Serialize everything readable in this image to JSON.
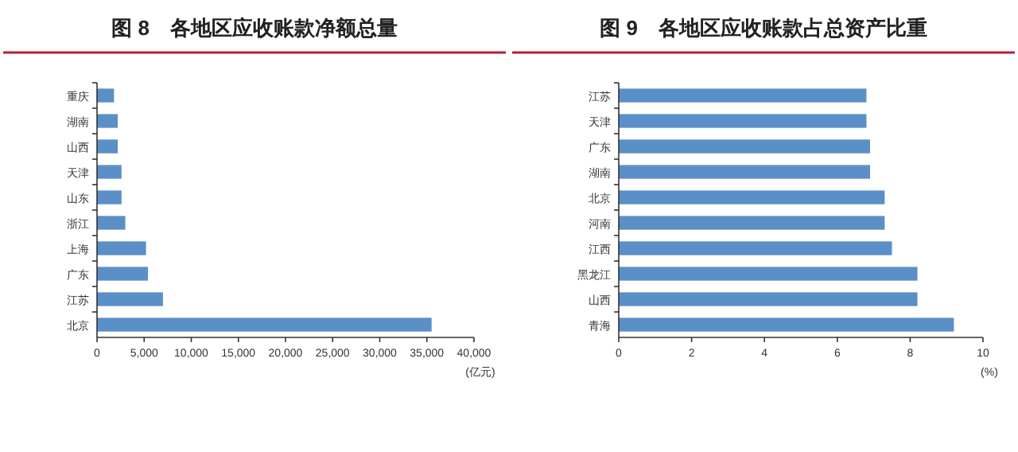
{
  "chart_data": [
    {
      "type": "bar",
      "orientation": "horizontal",
      "title": "图 8　各地区应收账款净额总量",
      "xlabel": "(亿元)",
      "categories": [
        "重庆",
        "湖南",
        "山西",
        "天津",
        "山东",
        "浙江",
        "上海",
        "广东",
        "江苏",
        "北京"
      ],
      "values": [
        1800,
        2200,
        2200,
        2600,
        2600,
        3000,
        5200,
        5400,
        7000,
        35500
      ],
      "color": "#5b8fc7",
      "xlim": [
        0,
        40000
      ],
      "xticks": [
        0,
        {
          "value": 5000,
          "label": "5,000"
        },
        {
          "value": 10000,
          "label": "10,000"
        },
        {
          "value": 15000,
          "label": "15,000"
        },
        {
          "value": 20000,
          "label": "20,000"
        },
        {
          "value": 25000,
          "label": "25,000"
        },
        {
          "value": 30000,
          "label": "30,000"
        },
        {
          "value": 35000,
          "label": "35,000"
        },
        {
          "value": 40000,
          "label": "40,000"
        }
      ]
    },
    {
      "type": "bar",
      "orientation": "horizontal",
      "title": "图 9　各地区应收账款占总资产比重",
      "xlabel": "(%)",
      "categories": [
        "江苏",
        "天津",
        "广东",
        "湖南",
        "北京",
        "河南",
        "江西",
        "黑龙江",
        "山西",
        "青海"
      ],
      "values": [
        6.8,
        6.8,
        6.9,
        6.9,
        7.3,
        7.3,
        7.5,
        8.2,
        8.2,
        9.2
      ],
      "color": "#5b8fc7",
      "xlim": [
        0,
        10
      ],
      "xticks": [
        0,
        2,
        4,
        6,
        8,
        10
      ]
    }
  ]
}
